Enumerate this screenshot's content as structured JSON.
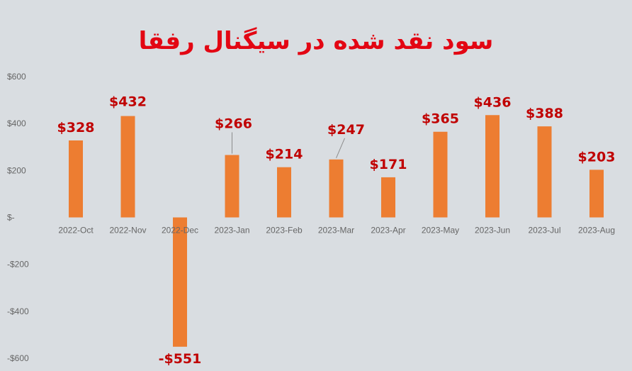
{
  "chart_data": {
    "type": "bar",
    "title": "سود نقد شده در سیگنال رفقا",
    "categories": [
      "2022-Oct",
      "2022-Nov",
      "2022-Dec",
      "2023-Jan",
      "2023-Feb",
      "2023-Mar",
      "2023-Apr",
      "2023-May",
      "2023-Jun",
      "2023-Jul",
      "2023-Aug"
    ],
    "values": [
      328,
      432,
      -551,
      266,
      214,
      247,
      171,
      365,
      436,
      388,
      203
    ],
    "data_labels": [
      "$328",
      "$432",
      "-$551",
      "$266",
      "$214",
      "$247",
      "$171",
      "$365",
      "$436",
      "$388",
      "$203"
    ],
    "ylim": [
      -600,
      600
    ],
    "yticks": [
      600,
      400,
      200,
      0,
      -200,
      -400,
      -600
    ],
    "ytick_labels": [
      "$600",
      "$400",
      "$200",
      "$-",
      "-$200",
      "-$400",
      "-$600"
    ],
    "xlabel": "",
    "ylabel": "",
    "grid": false,
    "legend": "none",
    "colors": {
      "bar": "#ed7d31",
      "data_label": "#c00000",
      "title": "#e30613",
      "axis_text": "#666666",
      "background": "#d9dde1"
    }
  }
}
